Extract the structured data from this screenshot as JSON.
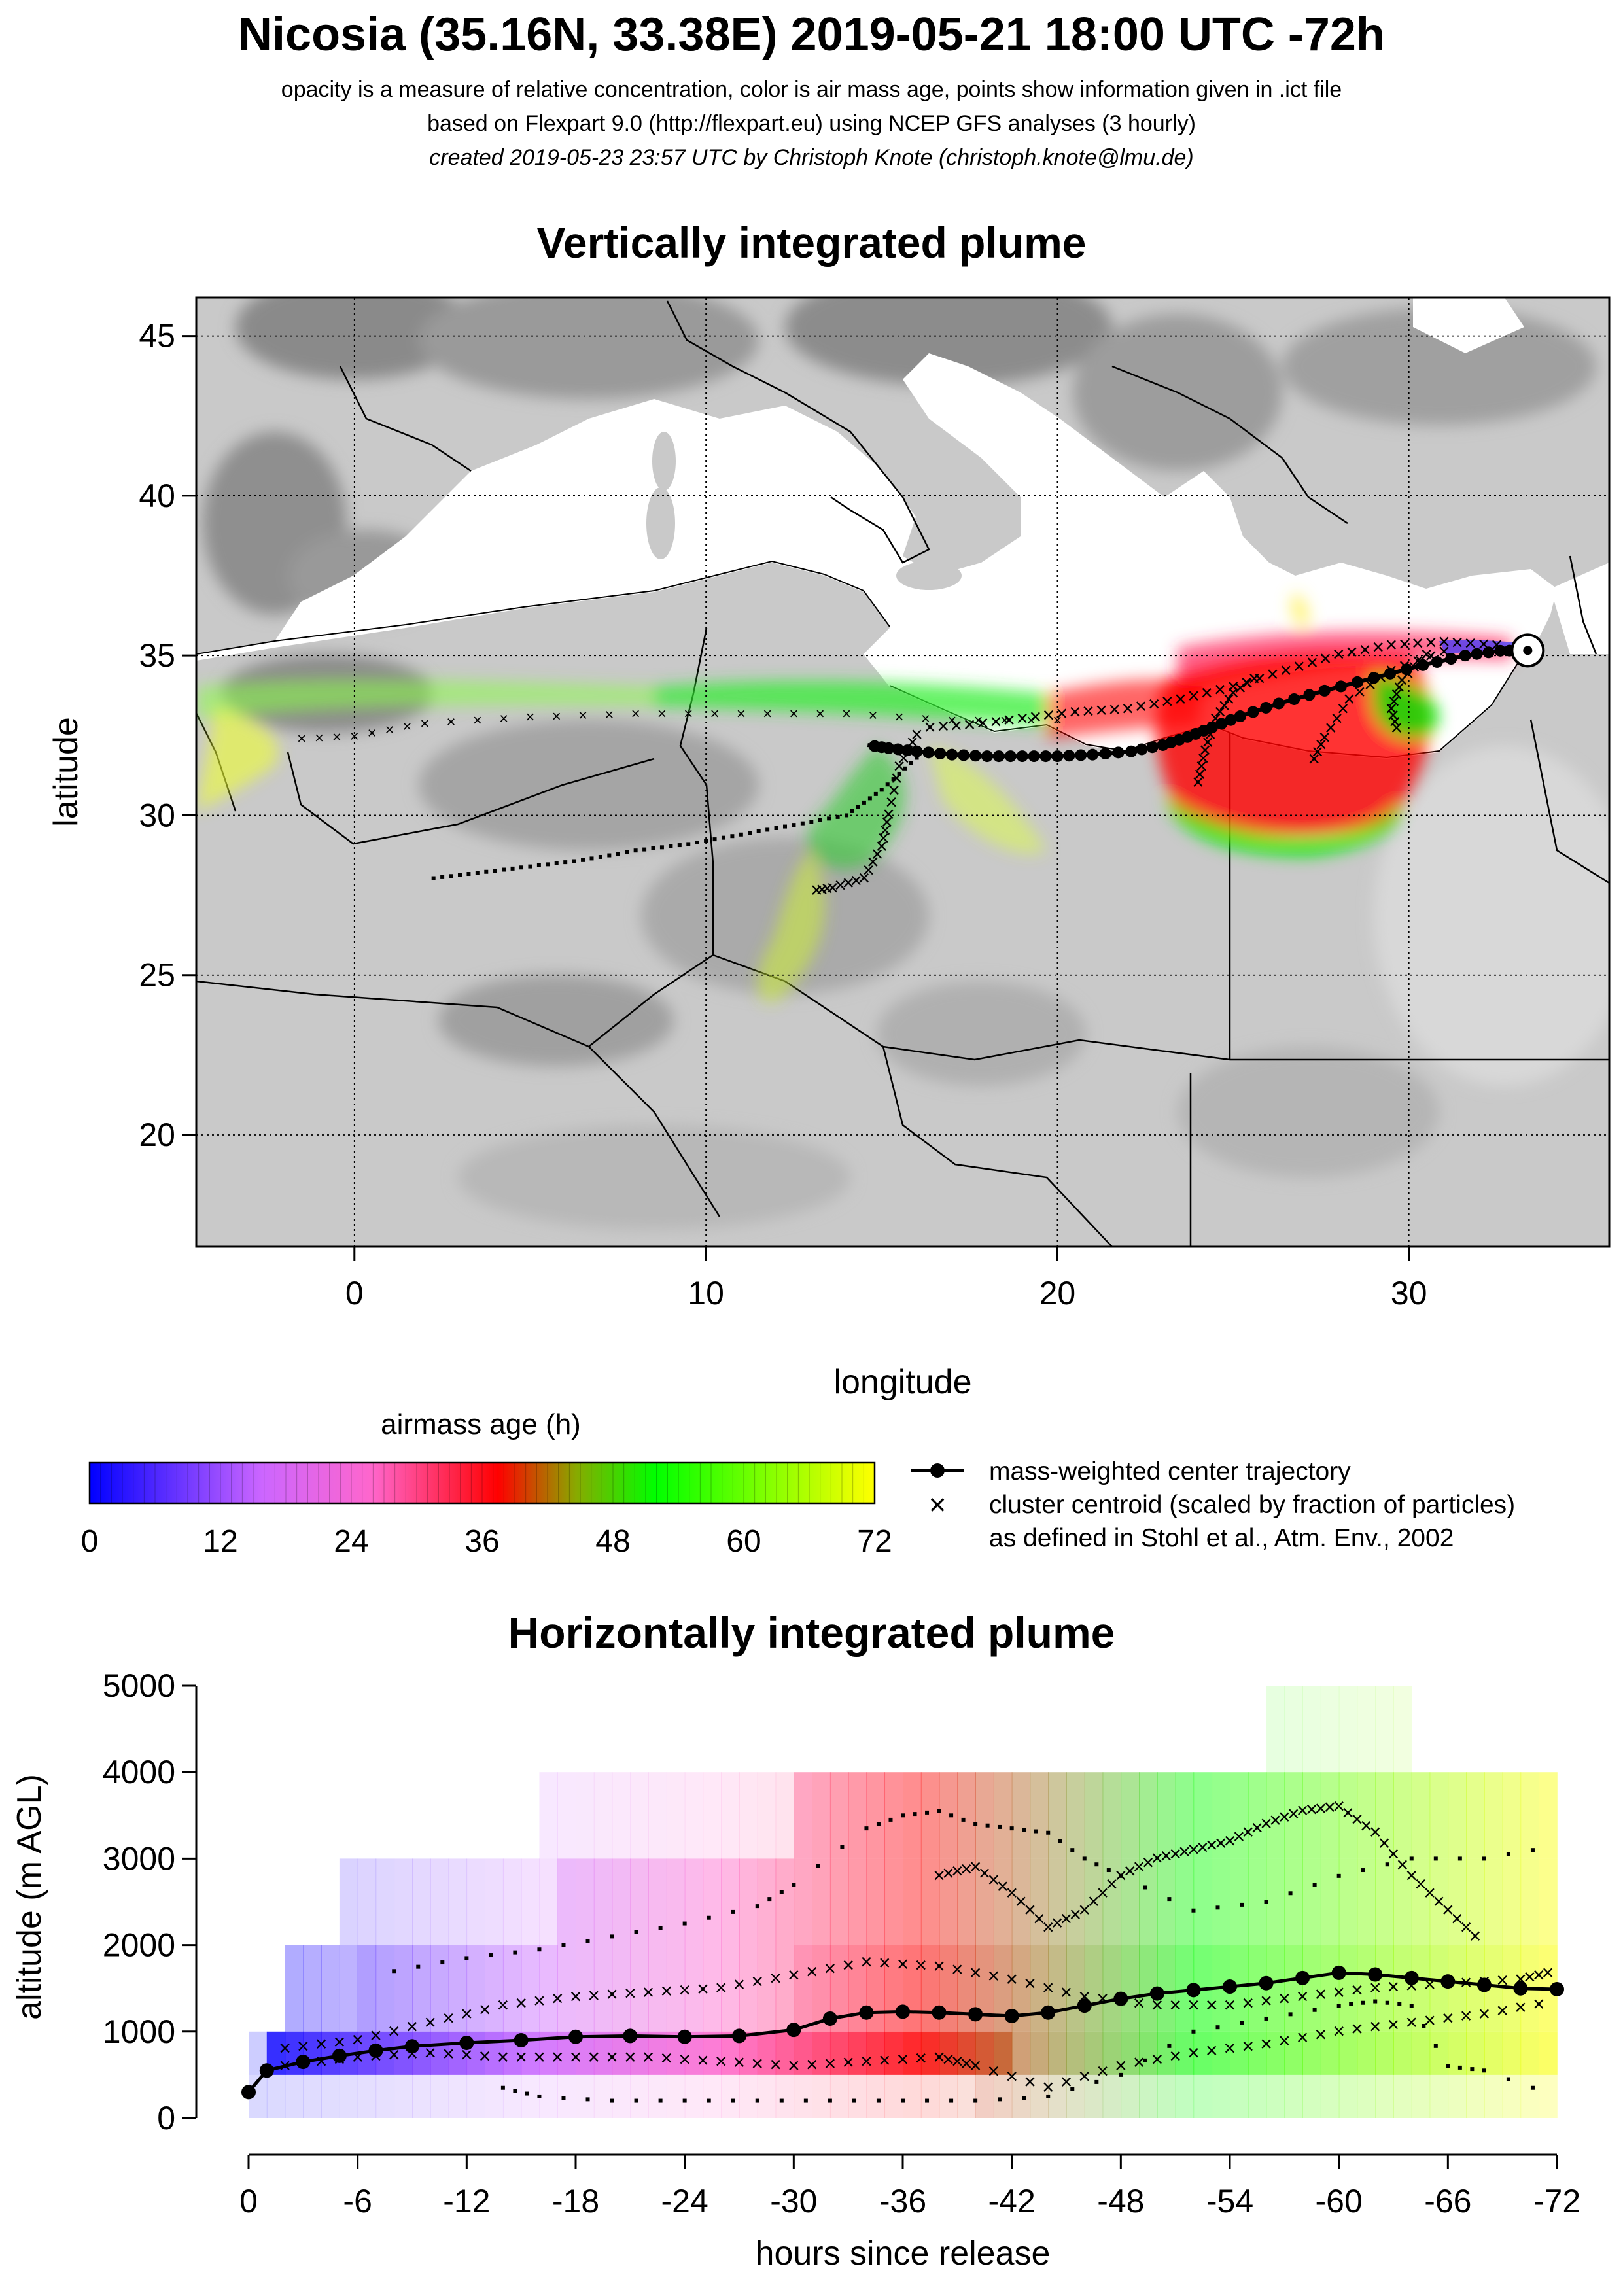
{
  "header": {
    "title": "Nicosia (35.16N, 33.38E) 2019-05-21 18:00 UTC -72h",
    "line1": "opacity is a measure of relative concentration, color is air mass age, points show information given in .ict file",
    "line2": "based on Flexpart 9.0 (http://flexpart.eu) using NCEP GFS analyses (3 hourly)",
    "line3": "created 2019-05-23 23:57 UTC by Christoph Knote (christoph.knote@lmu.de)"
  },
  "colors": {
    "age_scale": [
      "#0000ff",
      "#cc66ff",
      "#ff66cc",
      "#ff0000",
      "#00ff00",
      "#ffff00"
    ],
    "map_background": "#c8c8c8",
    "sea": "#ffffff",
    "trajectory": "#000000"
  },
  "chart_data": [
    {
      "type": "map",
      "title": "Vertically integrated plume",
      "xlabel": "longitude",
      "ylabel": "latitude",
      "xlim": [
        -4.5,
        35.7
      ],
      "ylim": [
        16.5,
        46.2
      ],
      "x_ticks": [
        "0",
        "10",
        "20",
        "30"
      ],
      "x_tick_values": [
        0,
        10,
        20,
        30
      ],
      "y_ticks": [
        "20",
        "25",
        "30",
        "35",
        "40",
        "45"
      ],
      "y_tick_values": [
        20,
        25,
        30,
        35,
        40,
        45
      ],
      "grid": true,
      "release_point": {
        "lon": 33.38,
        "lat": 35.16
      },
      "center_trajectory": {
        "lon": [
          33.38,
          32.6,
          31.6,
          30.4,
          29.0,
          27.6,
          26.3,
          25.2,
          24.4,
          23.7,
          23.0,
          22.1,
          21.0,
          20.0,
          19.0,
          18.0,
          17.0,
          16.0,
          15.2,
          14.6
        ],
        "lat": [
          35.16,
          35.15,
          35.0,
          34.7,
          34.3,
          33.9,
          33.5,
          33.1,
          32.75,
          32.45,
          32.2,
          32.0,
          31.9,
          31.85,
          31.85,
          31.85,
          31.9,
          32.0,
          32.1,
          32.2
        ]
      },
      "cluster_centroids": [
        {
          "lon": [
            32.5,
            31.0,
            29.5,
            28.0,
            26.5,
            25.0,
            23.5,
            22.0,
            20.5,
            19.0,
            17.5,
            16.0
          ],
          "lat": [
            35.3,
            35.4,
            35.3,
            35.0,
            34.5,
            34.0,
            33.6,
            33.3,
            33.2,
            33.0,
            32.8,
            32.7
          ]
        },
        {
          "lon": [
            31.0,
            29.5,
            28.3,
            27.6,
            27.2
          ],
          "lat": [
            35.1,
            34.5,
            33.6,
            32.4,
            31.5
          ]
        },
        {
          "lon": [
            24.0,
            24.2,
            24.5,
            25.0,
            25.8
          ],
          "lat": [
            31.0,
            32.0,
            33.0,
            33.8,
            34.4
          ]
        },
        {
          "lon": [
            30.5,
            29.8,
            29.5,
            29.7
          ],
          "lat": [
            35.0,
            34.2,
            33.3,
            32.5
          ]
        },
        {
          "lon": [
            16.0,
            15.5,
            15.2,
            15.0,
            14.5,
            13.6,
            13.0
          ],
          "lat": [
            32.5,
            31.5,
            30.0,
            29.0,
            28.0,
            27.7,
            27.6
          ]
        },
        {
          "lon": [
            20.0,
            17.0,
            14.0,
            11.0,
            8.0,
            5.0,
            2.0,
            0.0,
            -2.0
          ],
          "lat": [
            33.0,
            33.0,
            33.2,
            33.2,
            33.2,
            33.1,
            32.9,
            32.5,
            32.4
          ]
        }
      ],
      "dotted_path": {
        "lon": [
          16.0,
          15.0,
          14.0,
          12.5,
          11.0,
          9.5,
          8.0,
          6.5,
          5.0,
          3.5,
          2.0
        ],
        "lat": [
          31.8,
          30.8,
          30.0,
          29.7,
          29.4,
          29.1,
          28.9,
          28.6,
          28.4,
          28.2,
          28.0
        ]
      }
    },
    {
      "type": "colorbar",
      "title": "airmass age (h)",
      "ticks": [
        "0",
        "12",
        "24",
        "36",
        "48",
        "60",
        "72"
      ],
      "range": [
        0,
        72
      ]
    },
    {
      "type": "scatter",
      "title": "Horizontally integrated plume",
      "xlabel": "hours since release",
      "ylabel": "altitude (m AGL)",
      "xlim": [
        0,
        -72
      ],
      "ylim": [
        0,
        5000
      ],
      "x_ticks": [
        "0",
        "-6",
        "-12",
        "-18",
        "-24",
        "-30",
        "-36",
        "-42",
        "-48",
        "-54",
        "-60",
        "-66",
        "-72"
      ],
      "y_ticks": [
        "0",
        "1000",
        "2000",
        "3000",
        "4000",
        "5000"
      ],
      "center_trajectory": {
        "hours": [
          0,
          -1,
          -3,
          -5,
          -7,
          -9,
          -12,
          -15,
          -18,
          -21,
          -24,
          -27,
          -30,
          -32,
          -34,
          -36,
          -38,
          -40,
          -42,
          -44,
          -46,
          -48,
          -50,
          -52,
          -54,
          -56,
          -58,
          -60,
          -62,
          -64,
          -66,
          -68,
          -70,
          -72
        ],
        "altitude": [
          300,
          550,
          650,
          720,
          780,
          830,
          870,
          900,
          940,
          950,
          940,
          950,
          1020,
          1150,
          1220,
          1230,
          1220,
          1200,
          1180,
          1220,
          1300,
          1380,
          1440,
          1480,
          1520,
          1560,
          1620,
          1680,
          1660,
          1620,
          1580,
          1540,
          1500,
          1490
        ]
      },
      "cluster_lines": [
        {
          "hours": [
            -2,
            -6,
            -10,
            -14,
            -18,
            -22,
            -26,
            -30,
            -34,
            -38,
            -42,
            -46,
            -50,
            -54,
            -58,
            -62,
            -66,
            -70,
            -72
          ],
          "altitude": [
            800,
            900,
            1100,
            1300,
            1400,
            1450,
            1500,
            1650,
            1800,
            1750,
            1600,
            1400,
            1300,
            1300,
            1400,
            1500,
            1550,
            1600,
            1700
          ]
        },
        {
          "hours": [
            -2,
            -6,
            -10,
            -14,
            -18,
            -22,
            -26,
            -30,
            -34,
            -38,
            -40,
            -44,
            -48,
            -52,
            -56,
            -60,
            -64,
            -68,
            -72
          ],
          "altitude": [
            600,
            700,
            750,
            700,
            700,
            700,
            650,
            600,
            650,
            700,
            600,
            350,
            600,
            750,
            850,
            1000,
            1100,
            1200,
            1350
          ]
        },
        {
          "hours": [
            -38,
            -40,
            -42,
            -44,
            -46,
            -48,
            -50,
            -52,
            -54,
            -56,
            -58,
            -60,
            -62,
            -64,
            -66,
            -68
          ],
          "altitude": [
            2800,
            2900,
            2600,
            2200,
            2400,
            2800,
            3000,
            3100,
            3200,
            3400,
            3550,
            3600,
            3300,
            2800,
            2400,
            2000
          ]
        }
      ],
      "dotted_lines": [
        {
          "hours": [
            -8,
            -12,
            -16,
            -20,
            -24,
            -28,
            -30,
            -34,
            -36,
            -38,
            -40,
            -42,
            -44,
            -46,
            -48,
            -52,
            -56,
            -60,
            -64,
            -68,
            -72
          ],
          "altitude": [
            1700,
            1850,
            1950,
            2100,
            2250,
            2450,
            2700,
            3350,
            3500,
            3550,
            3400,
            3350,
            3300,
            3000,
            2800,
            2400,
            2500,
            2800,
            3000,
            3000,
            3150
          ]
        },
        {
          "hours": [
            -14,
            -16,
            -20,
            -24,
            -28,
            -32,
            -36,
            -40,
            -44,
            -48,
            -52,
            -56,
            -60,
            -62,
            -64,
            -66,
            -68,
            -72
          ],
          "altitude": [
            350,
            250,
            200,
            200,
            200,
            200,
            200,
            200,
            250,
            500,
            1000,
            1150,
            1300,
            1350,
            1300,
            600,
            550,
            250
          ]
        }
      ]
    }
  ],
  "legend": {
    "center_label": "mass-weighted center trajectory",
    "cluster_label": "cluster centroid (scaled by fraction of particles)",
    "cluster_ref": "as defined in Stohl et al., Atm. Env., 2002"
  }
}
